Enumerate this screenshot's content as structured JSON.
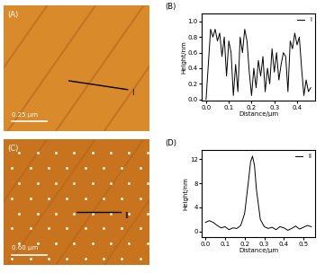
{
  "images": [
    {
      "label": "(A)",
      "scale_bar": "0.25 μm",
      "line_label": "I"
    },
    {
      "label": "(C)",
      "scale_bar": "0.60 μm",
      "line_label": "II"
    }
  ],
  "chart_data": [
    {
      "type": "line",
      "title": "(B)",
      "x_label": "Distance/μm",
      "y_label": "Height/nm",
      "legend": "upper right",
      "series": [
        {
          "name": "I",
          "color": "#000000",
          "x": [
            0.0,
            0.01,
            0.02,
            0.025,
            0.03,
            0.04,
            0.05,
            0.06,
            0.07,
            0.08,
            0.09,
            0.1,
            0.11,
            0.12,
            0.13,
            0.14,
            0.15,
            0.16,
            0.17,
            0.18,
            0.19,
            0.2,
            0.21,
            0.22,
            0.23,
            0.24,
            0.25,
            0.26,
            0.27,
            0.28,
            0.29,
            0.3,
            0.31,
            0.32,
            0.33,
            0.34,
            0.35,
            0.36,
            0.37,
            0.38,
            0.39,
            0.4,
            0.41,
            0.42,
            0.43,
            0.44,
            0.45,
            0.46
          ],
          "values": [
            0.0,
            0.45,
            0.9,
            0.85,
            0.8,
            0.9,
            0.75,
            0.85,
            0.55,
            0.8,
            0.3,
            0.75,
            0.6,
            0.05,
            0.45,
            0.1,
            0.8,
            0.6,
            0.9,
            0.75,
            0.35,
            0.05,
            0.4,
            0.15,
            0.5,
            0.3,
            0.55,
            0.1,
            0.4,
            0.2,
            0.65,
            0.35,
            0.6,
            0.25,
            0.45,
            0.6,
            0.55,
            0.1,
            0.75,
            0.65,
            0.85,
            0.7,
            0.8,
            0.4,
            0.05,
            0.25,
            0.1,
            0.15
          ]
        }
      ],
      "xlim": [
        -0.02,
        0.48
      ],
      "xticks": [
        0.0,
        0.1,
        0.2,
        0.3,
        0.4
      ],
      "ylim": [
        -0.02,
        1.1
      ],
      "yticks": [
        0.0,
        0.2,
        0.4,
        0.6,
        0.8,
        1.0
      ]
    },
    {
      "type": "line",
      "title": "(D)",
      "x_label": "Distance/μm",
      "y_label": "Height/nm",
      "legend": "upper right",
      "series": [
        {
          "name": "II",
          "color": "#000000",
          "x": [
            0.0,
            0.02,
            0.04,
            0.06,
            0.08,
            0.1,
            0.12,
            0.14,
            0.16,
            0.18,
            0.2,
            0.22,
            0.23,
            0.24,
            0.25,
            0.26,
            0.28,
            0.3,
            0.32,
            0.34,
            0.36,
            0.38,
            0.4,
            0.42,
            0.44,
            0.46,
            0.48,
            0.5,
            0.52,
            0.54
          ],
          "values": [
            1.5,
            1.8,
            1.5,
            1.0,
            0.6,
            0.8,
            0.3,
            0.6,
            0.5,
            1.0,
            3.0,
            8.5,
            11.5,
            12.5,
            11.0,
            7.0,
            2.0,
            0.8,
            0.5,
            0.7,
            0.3,
            0.8,
            0.6,
            0.2,
            0.5,
            0.9,
            0.4,
            0.7,
            1.0,
            0.8
          ]
        }
      ],
      "xlim": [
        -0.02,
        0.56
      ],
      "xticks": [
        0.0,
        0.1,
        0.2,
        0.3,
        0.4,
        0.5
      ],
      "ylim": [
        -1,
        13.5
      ],
      "yticks": [
        0,
        4,
        8,
        12
      ]
    }
  ]
}
